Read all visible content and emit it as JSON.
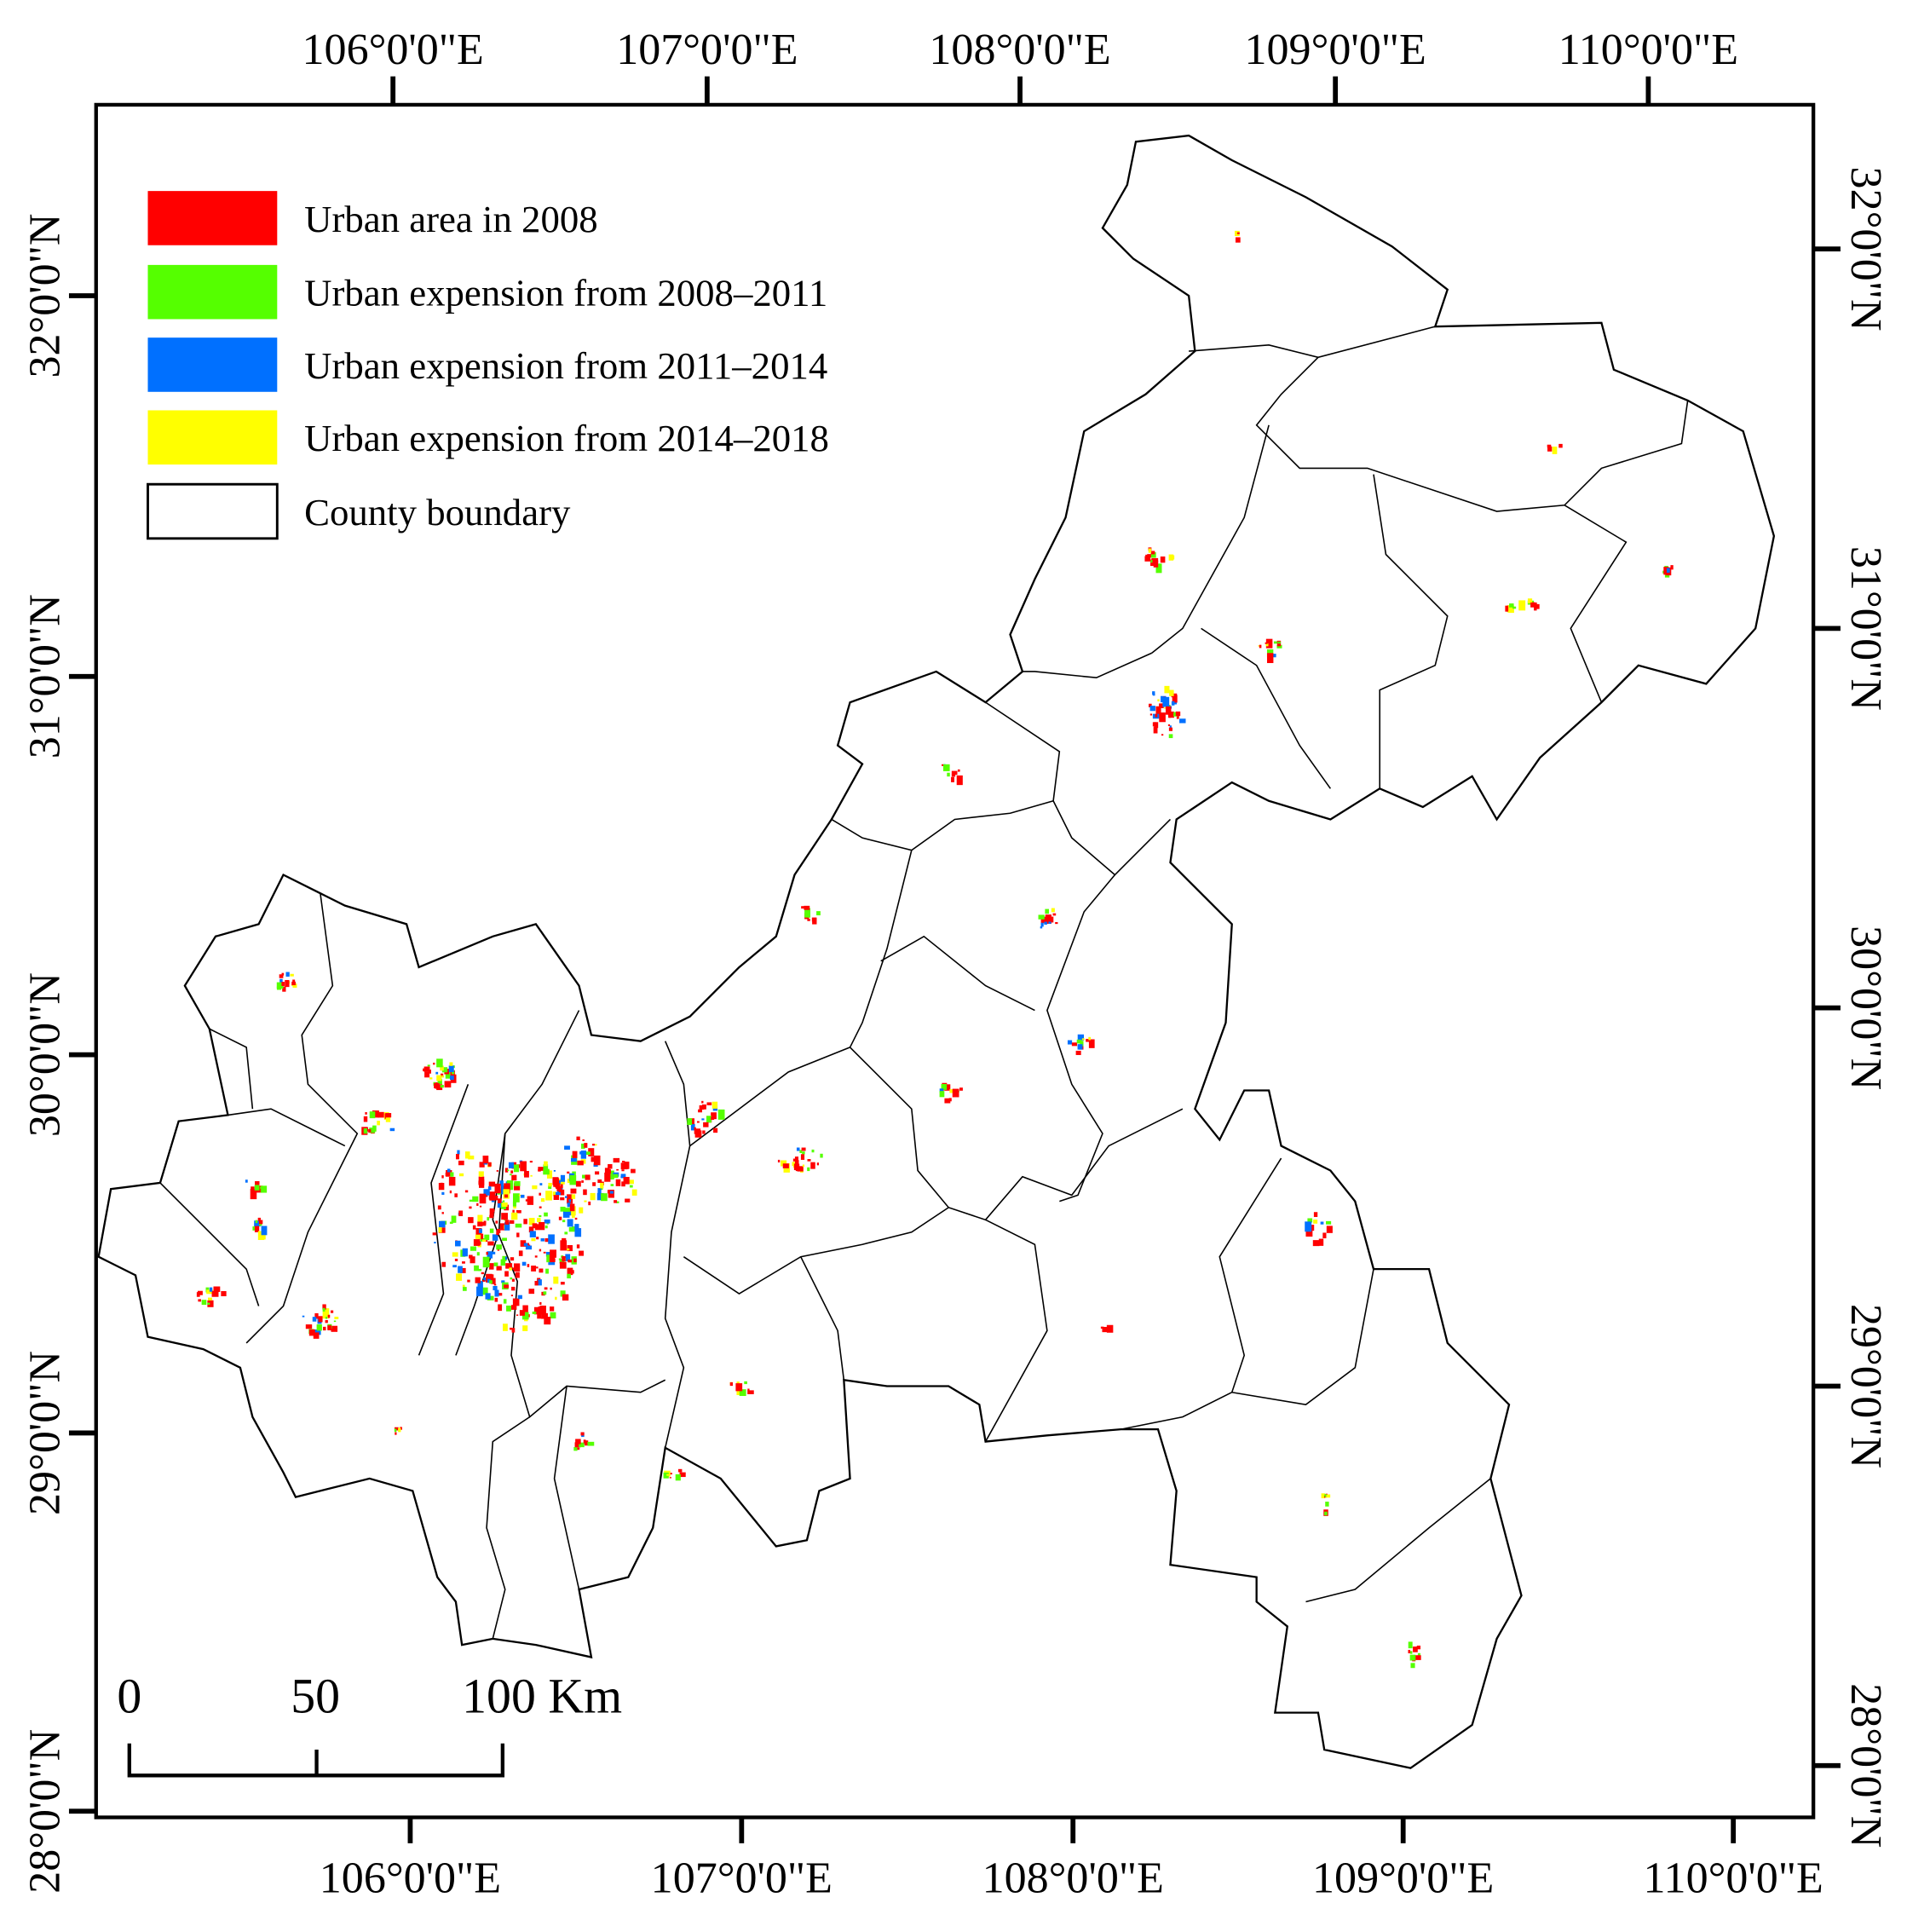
{
  "map": {
    "top_longitude_labels": [
      "106°0'0\"E",
      "107°0'0\"E",
      "108°0'0\"E",
      "109°0'0\"E",
      "110°0'0\"E"
    ],
    "bottom_longitude_labels": [
      "106°0'0\"E",
      "107°0'0\"E",
      "108°0'0\"E",
      "109°0'0\"E",
      "110°0'0\"E"
    ],
    "left_latitude_labels": [
      "32°0'0\"N",
      "31°0'0\"N",
      "30°0'0\"N",
      "29°0'0\"N",
      "28°0'0\"N"
    ],
    "right_latitude_labels": [
      "32°0'0\"N",
      "31°0'0\"N",
      "30°0'0\"N",
      "29°0'0\"N",
      "28°0'0\"N"
    ],
    "legend": [
      {
        "label": "Urban area in 2008",
        "color": "#ff0000"
      },
      {
        "label": "Urban expension from 2008–2011",
        "color": "#55ff00"
      },
      {
        "label": "Urban expension from 2011–2014",
        "color": "#0070ff"
      },
      {
        "label": "Urban expension from 2014–2018",
        "color": "#ffff00"
      },
      {
        "label": "County boundary",
        "color": "none"
      }
    ],
    "scale_bar": {
      "labels": [
        "0",
        "50",
        "100 Km"
      ]
    }
  }
}
